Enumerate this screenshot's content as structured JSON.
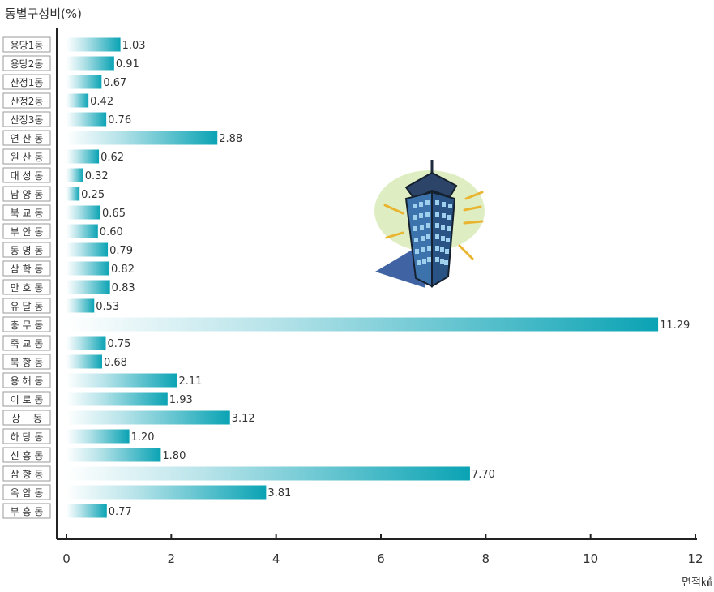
{
  "chart_data": {
    "type": "bar",
    "orientation": "horizontal",
    "title": "동별구성비(%)",
    "xlabel": "면적㎢",
    "ylabel": "",
    "xlim": [
      0,
      12
    ],
    "xticks": [
      0,
      2,
      4,
      6,
      8,
      10,
      12
    ],
    "grid": false,
    "legend": "none",
    "categories": [
      "용당1동",
      "용당2동",
      "산정1동",
      "산정2동",
      "산정3동",
      "연 산 동",
      "원 산 동",
      "대 성 동",
      "남 양 동",
      "북 교 동",
      "부 안 동",
      "동 명 동",
      "삼 학 동",
      "만 호 동",
      "유 달 동",
      "충 무 동",
      "죽 교 동",
      "북 항 동",
      "용 해 동",
      "이 로 동",
      "상　 동",
      "하 당 동",
      "신 흥 동",
      "삼 향 동",
      "옥 암 동",
      "부 흥 동"
    ],
    "values": [
      1.03,
      0.91,
      0.67,
      0.42,
      0.76,
      2.88,
      0.62,
      0.32,
      0.25,
      0.65,
      0.6,
      0.79,
      0.82,
      0.83,
      0.53,
      11.29,
      0.75,
      0.68,
      2.11,
      1.93,
      3.12,
      1.2,
      1.8,
      7.7,
      3.81,
      0.77
    ],
    "value_labels": [
      "1.03",
      "0.91",
      "0.67",
      "0.42",
      "0.76",
      "2.88",
      "0.62",
      "0.32",
      "0.25",
      "0.65",
      "0.60",
      "0.79",
      "0.82",
      "0.83",
      "0.53",
      "11.29",
      "0.75",
      "0.68",
      "2.11",
      "1.93",
      "3.12",
      "1.20",
      "1.80",
      "7.70",
      "3.81",
      "0.77"
    ],
    "colors": {
      "bar_start": "#ffffff",
      "bar_end": "#0aa3b4",
      "label_box": "#ffffff",
      "label_border": "#9a9a9a",
      "axis": "#222222",
      "text": "#333333"
    },
    "illustration": "skyscraper-illustration"
  }
}
